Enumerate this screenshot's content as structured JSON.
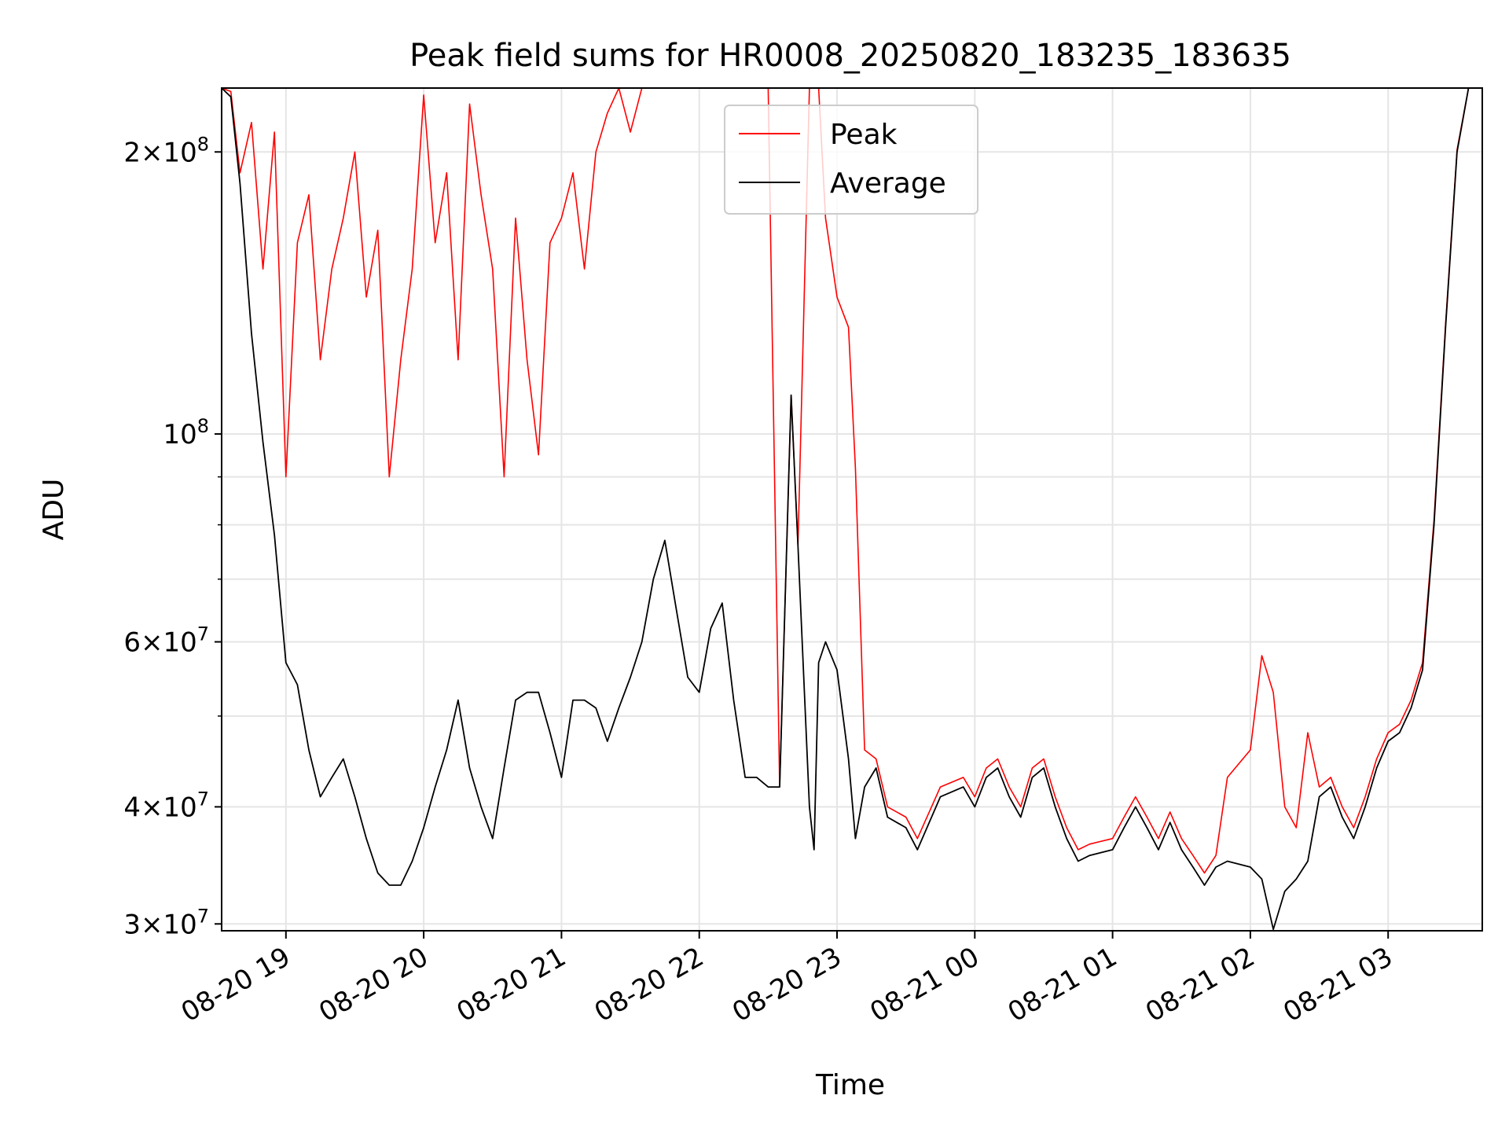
{
  "chart_data": {
    "type": "line",
    "title": "Peak field sums for HR0008_20250820_183235_183635",
    "xlabel": "Time",
    "ylabel": "ADU",
    "y_scale": "log",
    "ylim": [
      29500000,
      234000000
    ],
    "xlim": [
      "2025-08-20T18:32",
      "2025-08-21T03:41"
    ],
    "grid": true,
    "legend_position": "top-center",
    "x_ticks": [
      "2025-08-20T19:00",
      "2025-08-20T20:00",
      "2025-08-20T21:00",
      "2025-08-20T22:00",
      "2025-08-20T23:00",
      "2025-08-21T00:00",
      "2025-08-21T01:00",
      "2025-08-21T02:00",
      "2025-08-21T03:00"
    ],
    "x_tick_labels": [
      "08-20 19",
      "08-20 20",
      "08-20 21",
      "08-20 22",
      "08-20 23",
      "08-21 00",
      "08-21 01",
      "08-21 02",
      "08-21 03"
    ],
    "y_major_ticks": [
      {
        "value": 30000000,
        "mant": "3",
        "exp": "7"
      },
      {
        "value": 40000000,
        "mant": "4",
        "exp": "7"
      },
      {
        "value": 60000000,
        "mant": "6",
        "exp": "7"
      },
      {
        "value": 100000000,
        "mant": "",
        "exp": "8"
      },
      {
        "value": 200000000,
        "mant": "2",
        "exp": "8"
      }
    ],
    "y_minor_gridlines": [
      50000000,
      70000000,
      80000000,
      90000000
    ],
    "series": [
      {
        "name": "Average",
        "color": "#000000",
        "points": [
          [
            "2025-08-20T18:32",
            234000000
          ],
          [
            "2025-08-20T18:36",
            229000000
          ],
          [
            "2025-08-20T18:40",
            185000000
          ],
          [
            "2025-08-20T18:45",
            128000000
          ],
          [
            "2025-08-20T18:50",
            98000000
          ],
          [
            "2025-08-20T18:55",
            78000000
          ],
          [
            "2025-08-20T19:00",
            57000000
          ],
          [
            "2025-08-20T19:05",
            54000000
          ],
          [
            "2025-08-20T19:10",
            46000000
          ],
          [
            "2025-08-20T19:15",
            41000000
          ],
          [
            "2025-08-20T19:20",
            43000000
          ],
          [
            "2025-08-20T19:25",
            45000000
          ],
          [
            "2025-08-20T19:30",
            41000000
          ],
          [
            "2025-08-20T19:35",
            37000000
          ],
          [
            "2025-08-20T19:40",
            34000000
          ],
          [
            "2025-08-20T19:45",
            33000000
          ],
          [
            "2025-08-20T19:50",
            33000000
          ],
          [
            "2025-08-20T19:55",
            35000000
          ],
          [
            "2025-08-20T20:00",
            38000000
          ],
          [
            "2025-08-20T20:05",
            42000000
          ],
          [
            "2025-08-20T20:10",
            46000000
          ],
          [
            "2025-08-20T20:15",
            52000000
          ],
          [
            "2025-08-20T20:20",
            44000000
          ],
          [
            "2025-08-20T20:25",
            40000000
          ],
          [
            "2025-08-20T20:30",
            37000000
          ],
          [
            "2025-08-20T20:35",
            44000000
          ],
          [
            "2025-08-20T20:40",
            52000000
          ],
          [
            "2025-08-20T20:45",
            53000000
          ],
          [
            "2025-08-20T20:50",
            53000000
          ],
          [
            "2025-08-20T20:55",
            48000000
          ],
          [
            "2025-08-20T21:00",
            43000000
          ],
          [
            "2025-08-20T21:05",
            52000000
          ],
          [
            "2025-08-20T21:10",
            52000000
          ],
          [
            "2025-08-20T21:15",
            51000000
          ],
          [
            "2025-08-20T21:20",
            47000000
          ],
          [
            "2025-08-20T21:25",
            51000000
          ],
          [
            "2025-08-20T21:30",
            55000000
          ],
          [
            "2025-08-20T21:35",
            60000000
          ],
          [
            "2025-08-20T21:40",
            70000000
          ],
          [
            "2025-08-20T21:45",
            77000000
          ],
          [
            "2025-08-20T21:50",
            65000000
          ],
          [
            "2025-08-20T21:55",
            55000000
          ],
          [
            "2025-08-20T22:00",
            53000000
          ],
          [
            "2025-08-20T22:05",
            62000000
          ],
          [
            "2025-08-20T22:10",
            66000000
          ],
          [
            "2025-08-20T22:15",
            52000000
          ],
          [
            "2025-08-20T22:20",
            43000000
          ],
          [
            "2025-08-20T22:25",
            43000000
          ],
          [
            "2025-08-20T22:30",
            42000000
          ],
          [
            "2025-08-20T22:35",
            42000000
          ],
          [
            "2025-08-20T22:40",
            110000000
          ],
          [
            "2025-08-20T22:43",
            76000000
          ],
          [
            "2025-08-20T22:48",
            40000000
          ],
          [
            "2025-08-20T22:50",
            36000000
          ],
          [
            "2025-08-20T22:52",
            57000000
          ],
          [
            "2025-08-20T22:55",
            60000000
          ],
          [
            "2025-08-20T23:00",
            56000000
          ],
          [
            "2025-08-20T23:05",
            45000000
          ],
          [
            "2025-08-20T23:08",
            37000000
          ],
          [
            "2025-08-20T23:12",
            42000000
          ],
          [
            "2025-08-20T23:17",
            44000000
          ],
          [
            "2025-08-20T23:22",
            39000000
          ],
          [
            "2025-08-20T23:30",
            38000000
          ],
          [
            "2025-08-20T23:35",
            36000000
          ],
          [
            "2025-08-20T23:45",
            41000000
          ],
          [
            "2025-08-20T23:55",
            42000000
          ],
          [
            "2025-08-21T00:00",
            40000000
          ],
          [
            "2025-08-21T00:05",
            43000000
          ],
          [
            "2025-08-21T00:10",
            44000000
          ],
          [
            "2025-08-21T00:15",
            41000000
          ],
          [
            "2025-08-21T00:20",
            39000000
          ],
          [
            "2025-08-21T00:25",
            43000000
          ],
          [
            "2025-08-21T00:30",
            44000000
          ],
          [
            "2025-08-21T00:35",
            40000000
          ],
          [
            "2025-08-21T00:40",
            37000000
          ],
          [
            "2025-08-21T00:45",
            35000000
          ],
          [
            "2025-08-21T00:50",
            35500000
          ],
          [
            "2025-08-21T01:00",
            36000000
          ],
          [
            "2025-08-21T01:05",
            38000000
          ],
          [
            "2025-08-21T01:10",
            40000000
          ],
          [
            "2025-08-21T01:15",
            38000000
          ],
          [
            "2025-08-21T01:20",
            36000000
          ],
          [
            "2025-08-21T01:25",
            38500000
          ],
          [
            "2025-08-21T01:30",
            36000000
          ],
          [
            "2025-08-21T01:35",
            34500000
          ],
          [
            "2025-08-21T01:40",
            33000000
          ],
          [
            "2025-08-21T01:45",
            34500000
          ],
          [
            "2025-08-21T01:50",
            35000000
          ],
          [
            "2025-08-21T02:00",
            34500000
          ],
          [
            "2025-08-21T02:05",
            33500000
          ],
          [
            "2025-08-21T02:10",
            29600000
          ],
          [
            "2025-08-21T02:15",
            32500000
          ],
          [
            "2025-08-21T02:20",
            33500000
          ],
          [
            "2025-08-21T02:25",
            35000000
          ],
          [
            "2025-08-21T02:30",
            41000000
          ],
          [
            "2025-08-21T02:35",
            42000000
          ],
          [
            "2025-08-21T02:40",
            39000000
          ],
          [
            "2025-08-21T02:45",
            37000000
          ],
          [
            "2025-08-21T02:50",
            40000000
          ],
          [
            "2025-08-21T02:55",
            44000000
          ],
          [
            "2025-08-21T03:00",
            47000000
          ],
          [
            "2025-08-21T03:05",
            48000000
          ],
          [
            "2025-08-21T03:10",
            51000000
          ],
          [
            "2025-08-21T03:15",
            56000000
          ],
          [
            "2025-08-21T03:20",
            80000000
          ],
          [
            "2025-08-21T03:25",
            130000000
          ],
          [
            "2025-08-21T03:30",
            200000000
          ],
          [
            "2025-08-21T03:35",
            234000000
          ],
          [
            "2025-08-21T03:41",
            234000000
          ]
        ]
      },
      {
        "name": "Peak",
        "color": "#ff0000",
        "points": [
          [
            "2025-08-20T18:32",
            234000000
          ],
          [
            "2025-08-20T18:36",
            232000000
          ],
          [
            "2025-08-20T18:40",
            190000000
          ],
          [
            "2025-08-20T18:45",
            215000000
          ],
          [
            "2025-08-20T18:50",
            150000000
          ],
          [
            "2025-08-20T18:55",
            210000000
          ],
          [
            "2025-08-20T19:00",
            90000000
          ],
          [
            "2025-08-20T19:05",
            160000000
          ],
          [
            "2025-08-20T19:10",
            180000000
          ],
          [
            "2025-08-20T19:15",
            120000000
          ],
          [
            "2025-08-20T19:20",
            150000000
          ],
          [
            "2025-08-20T19:25",
            170000000
          ],
          [
            "2025-08-20T19:30",
            200000000
          ],
          [
            "2025-08-20T19:35",
            140000000
          ],
          [
            "2025-08-20T19:40",
            165000000
          ],
          [
            "2025-08-20T19:45",
            90000000
          ],
          [
            "2025-08-20T19:50",
            120000000
          ],
          [
            "2025-08-20T19:55",
            150000000
          ],
          [
            "2025-08-20T20:00",
            230000000
          ],
          [
            "2025-08-20T20:05",
            160000000
          ],
          [
            "2025-08-20T20:10",
            190000000
          ],
          [
            "2025-08-20T20:15",
            120000000
          ],
          [
            "2025-08-20T20:20",
            225000000
          ],
          [
            "2025-08-20T20:25",
            180000000
          ],
          [
            "2025-08-20T20:30",
            150000000
          ],
          [
            "2025-08-20T20:35",
            90000000
          ],
          [
            "2025-08-20T20:40",
            170000000
          ],
          [
            "2025-08-20T20:45",
            120000000
          ],
          [
            "2025-08-20T20:50",
            95000000
          ],
          [
            "2025-08-20T20:55",
            160000000
          ],
          [
            "2025-08-20T21:00",
            170000000
          ],
          [
            "2025-08-20T21:05",
            190000000
          ],
          [
            "2025-08-20T21:10",
            150000000
          ],
          [
            "2025-08-20T21:15",
            200000000
          ],
          [
            "2025-08-20T21:20",
            220000000
          ],
          [
            "2025-08-20T21:25",
            234000000
          ],
          [
            "2025-08-20T21:30",
            210000000
          ],
          [
            "2025-08-20T21:35",
            234000000
          ],
          [
            "2025-08-20T21:40",
            234000000
          ],
          [
            "2025-08-20T21:45",
            234000000
          ],
          [
            "2025-08-20T21:50",
            234000000
          ],
          [
            "2025-08-20T21:55",
            234000000
          ],
          [
            "2025-08-20T22:00",
            234000000
          ],
          [
            "2025-08-20T22:05",
            234000000
          ],
          [
            "2025-08-20T22:10",
            234000000
          ],
          [
            "2025-08-20T22:15",
            234000000
          ],
          [
            "2025-08-20T22:20",
            234000000
          ],
          [
            "2025-08-20T22:25",
            234000000
          ],
          [
            "2025-08-20T22:30",
            234000000
          ],
          [
            "2025-08-20T22:35",
            42000000
          ],
          [
            "2025-08-20T22:40",
            110000000
          ],
          [
            "2025-08-20T22:43",
            76000000
          ],
          [
            "2025-08-20T22:48",
            234000000
          ],
          [
            "2025-08-20T22:50",
            234000000
          ],
          [
            "2025-08-20T22:52",
            234000000
          ],
          [
            "2025-08-20T22:55",
            170000000
          ],
          [
            "2025-08-20T23:00",
            140000000
          ],
          [
            "2025-08-20T23:05",
            130000000
          ],
          [
            "2025-08-20T23:08",
            92000000
          ],
          [
            "2025-08-20T23:12",
            46000000
          ],
          [
            "2025-08-20T23:17",
            45000000
          ],
          [
            "2025-08-20T23:22",
            40000000
          ],
          [
            "2025-08-20T23:30",
            39000000
          ],
          [
            "2025-08-20T23:35",
            37000000
          ],
          [
            "2025-08-20T23:45",
            42000000
          ],
          [
            "2025-08-20T23:55",
            43000000
          ],
          [
            "2025-08-21T00:00",
            41000000
          ],
          [
            "2025-08-21T00:05",
            44000000
          ],
          [
            "2025-08-21T00:10",
            45000000
          ],
          [
            "2025-08-21T00:15",
            42000000
          ],
          [
            "2025-08-21T00:20",
            40000000
          ],
          [
            "2025-08-21T00:25",
            44000000
          ],
          [
            "2025-08-21T00:30",
            45000000
          ],
          [
            "2025-08-21T00:35",
            41000000
          ],
          [
            "2025-08-21T00:40",
            38000000
          ],
          [
            "2025-08-21T00:45",
            36000000
          ],
          [
            "2025-08-21T00:50",
            36500000
          ],
          [
            "2025-08-21T01:00",
            37000000
          ],
          [
            "2025-08-21T01:05",
            39000000
          ],
          [
            "2025-08-21T01:10",
            41000000
          ],
          [
            "2025-08-21T01:15",
            39000000
          ],
          [
            "2025-08-21T01:20",
            37000000
          ],
          [
            "2025-08-21T01:25",
            39500000
          ],
          [
            "2025-08-21T01:30",
            37000000
          ],
          [
            "2025-08-21T01:35",
            35500000
          ],
          [
            "2025-08-21T01:40",
            34000000
          ],
          [
            "2025-08-21T01:45",
            35500000
          ],
          [
            "2025-08-21T01:50",
            43000000
          ],
          [
            "2025-08-21T02:00",
            46000000
          ],
          [
            "2025-08-21T02:05",
            58000000
          ],
          [
            "2025-08-21T02:10",
            53000000
          ],
          [
            "2025-08-21T02:15",
            40000000
          ],
          [
            "2025-08-21T02:20",
            38000000
          ],
          [
            "2025-08-21T02:25",
            48000000
          ],
          [
            "2025-08-21T02:30",
            42000000
          ],
          [
            "2025-08-21T02:35",
            43000000
          ],
          [
            "2025-08-21T02:40",
            40000000
          ],
          [
            "2025-08-21T02:45",
            38000000
          ],
          [
            "2025-08-21T02:50",
            41000000
          ],
          [
            "2025-08-21T02:55",
            45000000
          ],
          [
            "2025-08-21T03:00",
            48000000
          ],
          [
            "2025-08-21T03:05",
            49000000
          ],
          [
            "2025-08-21T03:10",
            52000000
          ],
          [
            "2025-08-21T03:15",
            57000000
          ],
          [
            "2025-08-21T03:20",
            81000000
          ],
          [
            "2025-08-21T03:25",
            131000000
          ],
          [
            "2025-08-21T03:30",
            201000000
          ],
          [
            "2025-08-21T03:35",
            234000000
          ],
          [
            "2025-08-21T03:41",
            234000000
          ]
        ]
      }
    ]
  }
}
